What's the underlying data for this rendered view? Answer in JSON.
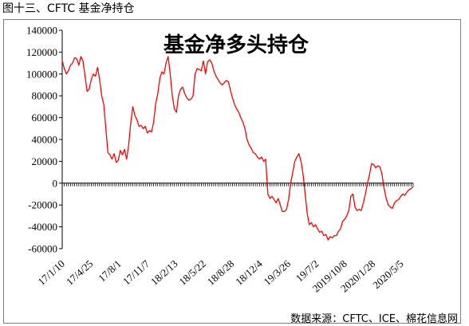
{
  "header": {
    "caption": "图十三、CFTC 基金净持仓"
  },
  "source_note": "数据来源：CFTC、ICE、棉花信息网",
  "chart_data": {
    "type": "line",
    "title": "基金净多头持仓",
    "xlabel": "",
    "ylabel": "",
    "ylim": [
      -60000,
      140000
    ],
    "yticks": [
      -60000,
      -40000,
      -20000,
      0,
      20000,
      40000,
      60000,
      80000,
      100000,
      120000,
      140000
    ],
    "ytick_labels": [
      "-60000",
      "-40000",
      "-20000",
      "0",
      "20000",
      "40000",
      "60000",
      "80000",
      "100000",
      "120000",
      "140000"
    ],
    "xtick_labels": [
      "17/1/10",
      "17/4/25",
      "17/8/1",
      "17/11/7",
      "18/2/13",
      "18/5/22",
      "18/8/28",
      "18/12/4",
      "19/3/26",
      "19/7/2",
      "2019/10/8",
      "2020/1/28",
      "2020/5/5"
    ],
    "grid": false,
    "legend": "none",
    "series": [
      {
        "color": "#ff0000",
        "values": [
          112000,
          105000,
          100000,
          103000,
          108000,
          110000,
          115000,
          114000,
          108000,
          116000,
          112000,
          98000,
          84000,
          86000,
          95000,
          100000,
          98000,
          106000,
          95000,
          80000,
          72000,
          50000,
          28000,
          26000,
          22000,
          27000,
          19000,
          21000,
          30000,
          26000,
          31000,
          22000,
          35000,
          55000,
          70000,
          62000,
          58000,
          52000,
          53000,
          50000,
          52000,
          46000,
          48000,
          47000,
          56000,
          73000,
          82000,
          96000,
          102000,
          100000,
          110000,
          116000,
          100000,
          80000,
          68000,
          65000,
          80000,
          86000,
          88000,
          82000,
          78000,
          76000,
          77000,
          80000,
          100000,
          105000,
          104000,
          103000,
          112000,
          100000,
          111000,
          113000,
          110000,
          103000,
          98000,
          95000,
          92000,
          90000,
          92000,
          94000,
          93000,
          85000,
          78000,
          72000,
          68000,
          65000,
          60000,
          56000,
          50000,
          40000,
          35000,
          32000,
          28000,
          27000,
          24000,
          22000,
          24000,
          20000,
          22000,
          -10000,
          -14000,
          -12000,
          -15000,
          -18000,
          -14000,
          -20000,
          -26000,
          -26000,
          -24000,
          -15000,
          0,
          10000,
          20000,
          24000,
          27000,
          20000,
          8000,
          -10000,
          -28000,
          -38000,
          -36000,
          -40000,
          -38000,
          -42000,
          -45000,
          -44000,
          -48000,
          -47000,
          -52000,
          -49000,
          -50000,
          -48000,
          -48000,
          -44000,
          -42000,
          -35000,
          -33000,
          -30000,
          -25000,
          -12000,
          -10000,
          -22000,
          -25000,
          -24000,
          -25000,
          -18000,
          -10000,
          0,
          8000,
          18000,
          17000,
          14000,
          16000,
          15000,
          8000,
          -5000,
          -14000,
          -20000,
          -22000,
          -23000,
          -18000,
          -16000,
          -15000,
          -12000,
          -10000,
          -11000,
          -8000,
          -6000,
          -5000,
          -3000
        ]
      }
    ]
  }
}
